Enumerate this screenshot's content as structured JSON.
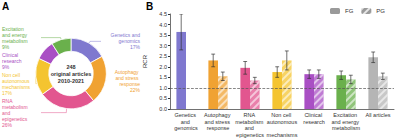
{
  "chart_data": [
    {
      "type": "donut",
      "panel": "A",
      "center_text": [
        "248",
        "original articles",
        "2010-2021"
      ],
      "categories": [
        "Genetics and genomics",
        "Autophagy and stress response",
        "RNA metabolism and epigenetics",
        "Non cell autonomous mechanisms",
        "Clinical research",
        "Excitation and energy metabolism"
      ],
      "values": [
        17,
        22,
        26,
        17,
        9,
        9
      ],
      "value_labels": [
        "17%",
        "22%",
        "26%",
        "17%",
        "9%",
        "9%"
      ],
      "colors": [
        "#7f78cf",
        "#f0a232",
        "#e2568f",
        "#f4c430",
        "#a94fc4",
        "#6ab04c"
      ],
      "data_labels": true
    },
    {
      "type": "bar",
      "panel": "B",
      "y_label": "RCR",
      "categories": [
        "Genetics and genomics",
        "Autophagy and stress response",
        "RNA metabolism and epigenetics",
        "Non cell autonomous mechanisms",
        "Clinical research",
        "Excitation and energy metabolism",
        "All articles"
      ],
      "colors": [
        "#7f78cf",
        "#f0a232",
        "#e2568f",
        "#f4c430",
        "#a94fc4",
        "#6ab04c",
        "#b5b5b5"
      ],
      "series": [
        {
          "name": "FG",
          "color": "#9a9a9a",
          "values": [
            3.65,
            2.3,
            1.95,
            1.75,
            1.65,
            1.6,
            2.45
          ],
          "errors": [
            0.85,
            0.3,
            0.3,
            0.25,
            0.2,
            0.2,
            0.25
          ]
        },
        {
          "name": "PG",
          "color": "#9a9a9a",
          "marker": "hatched",
          "values": [
            null,
            1.55,
            1.35,
            2.3,
            1.65,
            1.4,
            1.55
          ],
          "errors": [
            null,
            0.2,
            0.15,
            0.45,
            0.2,
            0.2,
            0.15
          ]
        }
      ],
      "reference_line": 1,
      "ylim": [
        0,
        4.5
      ],
      "yticks": [
        {
          "value": 0,
          "label": "0.0"
        },
        0.5,
        {
          "value": 1,
          "label": "1.0"
        },
        1.5,
        {
          "value": 2,
          "label": "2.0"
        },
        2.5,
        {
          "value": 3,
          "label": "3.0"
        },
        3.5,
        {
          "value": 4,
          "label": "4.0"
        },
        4.5
      ],
      "legend": "upper right"
    }
  ]
}
